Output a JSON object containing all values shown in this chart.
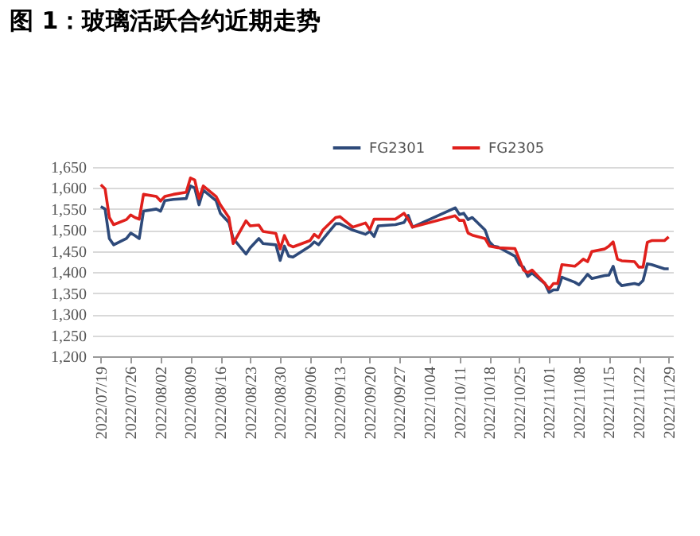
{
  "chart_data": {
    "type": "line",
    "title": "图 1：玻璃活跃合约近期走势",
    "x": [
      "2022-07-19",
      "2022-07-20",
      "2022-07-21",
      "2022-07-22",
      "2022-07-25",
      "2022-07-26",
      "2022-07-27",
      "2022-07-28",
      "2022-07-29",
      "2022-08-01",
      "2022-08-02",
      "2022-08-03",
      "2022-08-05",
      "2022-08-08",
      "2022-08-09",
      "2022-08-10",
      "2022-08-11",
      "2022-08-12",
      "2022-08-15",
      "2022-08-16",
      "2022-08-18",
      "2022-08-19",
      "2022-08-22",
      "2022-08-23",
      "2022-08-25",
      "2022-08-26",
      "2022-08-29",
      "2022-08-30",
      "2022-08-31",
      "2022-09-01",
      "2022-09-02",
      "2022-09-06",
      "2022-09-07",
      "2022-09-08",
      "2022-09-09",
      "2022-09-12",
      "2022-09-13",
      "2022-09-16",
      "2022-09-19",
      "2022-09-20",
      "2022-09-21",
      "2022-09-22",
      "2022-09-26",
      "2022-09-28",
      "2022-09-29",
      "2022-09-30",
      "2022-10-10",
      "2022-10-11",
      "2022-10-12",
      "2022-10-13",
      "2022-10-14",
      "2022-10-17",
      "2022-10-18",
      "2022-10-19",
      "2022-10-20",
      "2022-10-24",
      "2022-10-25",
      "2022-10-26",
      "2022-10-27",
      "2022-10-28",
      "2022-10-31",
      "2022-11-01",
      "2022-11-02",
      "2022-11-03",
      "2022-11-04",
      "2022-11-07",
      "2022-11-08",
      "2022-11-09",
      "2022-11-10",
      "2022-11-11",
      "2022-11-14",
      "2022-11-15",
      "2022-11-16",
      "2022-11-17",
      "2022-11-18",
      "2022-11-21",
      "2022-11-22",
      "2022-11-23",
      "2022-11-24",
      "2022-11-25",
      "2022-11-28",
      "2022-11-29"
    ],
    "series": [
      {
        "name": "FG2301",
        "color": "#2e4a7a",
        "values": [
          1556,
          1550,
          1480,
          1465,
          1480,
          1493,
          1487,
          1480,
          1545,
          1550,
          1545,
          1570,
          1573,
          1575,
          1605,
          1600,
          1560,
          1595,
          1570,
          1540,
          1518,
          1480,
          1443,
          1458,
          1480,
          1468,
          1465,
          1428,
          1462,
          1438,
          1436,
          1462,
          1472,
          1465,
          1478,
          1515,
          1515,
          1500,
          1490,
          1497,
          1485,
          1510,
          1513,
          1518,
          1535,
          1507,
          1553,
          1537,
          1540,
          1525,
          1530,
          1500,
          1472,
          1462,
          1460,
          1438,
          1418,
          1412,
          1390,
          1398,
          1373,
          1352,
          1358,
          1358,
          1388,
          1376,
          1370,
          1382,
          1395,
          1385,
          1392,
          1393,
          1414,
          1378,
          1368,
          1373,
          1370,
          1380,
          1420,
          1418,
          1408,
          1408
        ]
      },
      {
        "name": "FG2305",
        "color": "#e0201c",
        "values": [
          1608,
          1598,
          1530,
          1513,
          1525,
          1536,
          1530,
          1526,
          1585,
          1580,
          1569,
          1580,
          1585,
          1590,
          1624,
          1619,
          1575,
          1605,
          1580,
          1560,
          1530,
          1468,
          1522,
          1510,
          1512,
          1497,
          1492,
          1455,
          1487,
          1465,
          1460,
          1475,
          1490,
          1482,
          1500,
          1530,
          1532,
          1507,
          1517,
          1501,
          1526,
          1526,
          1526,
          1540,
          1526,
          1507,
          1534,
          1523,
          1523,
          1493,
          1488,
          1480,
          1462,
          1460,
          1458,
          1456,
          1431,
          1405,
          1399,
          1405,
          1373,
          1360,
          1373,
          1373,
          1418,
          1414,
          1422,
          1431,
          1425,
          1449,
          1455,
          1462,
          1472,
          1431,
          1427,
          1425,
          1412,
          1412,
          1471,
          1475,
          1475,
          1484
        ]
      }
    ],
    "xlim": [
      "2022-07-17",
      "2022-11-30"
    ],
    "xticks": [
      {
        "value": "2022-07-19",
        "label": "2022/07/19"
      },
      {
        "value": "2022-07-26",
        "label": "2022/07/26"
      },
      {
        "value": "2022-08-02",
        "label": "2022/08/02"
      },
      {
        "value": "2022-08-09",
        "label": "2022/08/09"
      },
      {
        "value": "2022-08-16",
        "label": "2022/08/16"
      },
      {
        "value": "2022-08-23",
        "label": "2022/08/23"
      },
      {
        "value": "2022-08-30",
        "label": "2022/08/30"
      },
      {
        "value": "2022-09-06",
        "label": "2022/09/06"
      },
      {
        "value": "2022-09-13",
        "label": "2022/09/13"
      },
      {
        "value": "2022-09-20",
        "label": "2022/09/20"
      },
      {
        "value": "2022-09-27",
        "label": "2022/09/27"
      },
      {
        "value": "2022-10-04",
        "label": "2022/10/04"
      },
      {
        "value": "2022-10-11",
        "label": "2022/10/11"
      },
      {
        "value": "2022-10-18",
        "label": "2022/10/18"
      },
      {
        "value": "2022-10-25",
        "label": "2022/10/25"
      },
      {
        "value": "2022-11-01",
        "label": "2022/11/01"
      },
      {
        "value": "2022-11-08",
        "label": "2022/11/08"
      },
      {
        "value": "2022-11-15",
        "label": "2022/11/15"
      },
      {
        "value": "2022-11-22",
        "label": "2022/11/22"
      },
      {
        "value": "2022-11-29",
        "label": "2022/11/29"
      }
    ],
    "ylim": [
      1200,
      1650
    ],
    "yticks": [
      {
        "value": 1200,
        "label": "1,200"
      },
      {
        "value": 1250,
        "label": "1,250"
      },
      {
        "value": 1300,
        "label": "1,300"
      },
      {
        "value": 1350,
        "label": "1,350"
      },
      {
        "value": 1400,
        "label": "1,400"
      },
      {
        "value": 1450,
        "label": "1,450"
      },
      {
        "value": 1500,
        "label": "1,500"
      },
      {
        "value": 1550,
        "label": "1,550"
      },
      {
        "value": 1600,
        "label": "1,600"
      },
      {
        "value": 1650,
        "label": "1,650"
      }
    ],
    "grid": "y",
    "legend": "top right",
    "marker": "none",
    "line_style": "solid"
  }
}
